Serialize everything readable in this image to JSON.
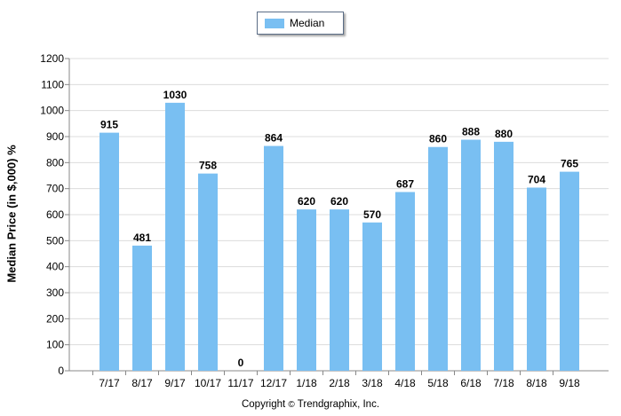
{
  "legend": {
    "label": "Median",
    "color": "#79bff2"
  },
  "copyright": {
    "prefix": "Copyright",
    "symbol": "©",
    "suffix": "Trendgraphix, Inc."
  },
  "chart_data": {
    "type": "bar",
    "categories": [
      "7/17",
      "8/17",
      "9/17",
      "10/17",
      "11/17",
      "12/17",
      "1/18",
      "2/18",
      "3/18",
      "4/18",
      "5/18",
      "6/18",
      "7/18",
      "8/18",
      "9/18"
    ],
    "series": [
      {
        "name": "Median",
        "values": [
          915,
          481,
          1030,
          758,
          0,
          864,
          620,
          620,
          570,
          687,
          860,
          888,
          880,
          704,
          765
        ]
      }
    ],
    "ylabel": "Median Price (in $,000) %",
    "ylim": [
      0,
      1200
    ],
    "yticks": [
      0,
      100,
      200,
      300,
      400,
      500,
      600,
      700,
      800,
      900,
      1000,
      1100,
      1200
    ],
    "grid": true,
    "legend_position": "top-center",
    "bar_color": "#79bff2",
    "data_labels": true
  }
}
